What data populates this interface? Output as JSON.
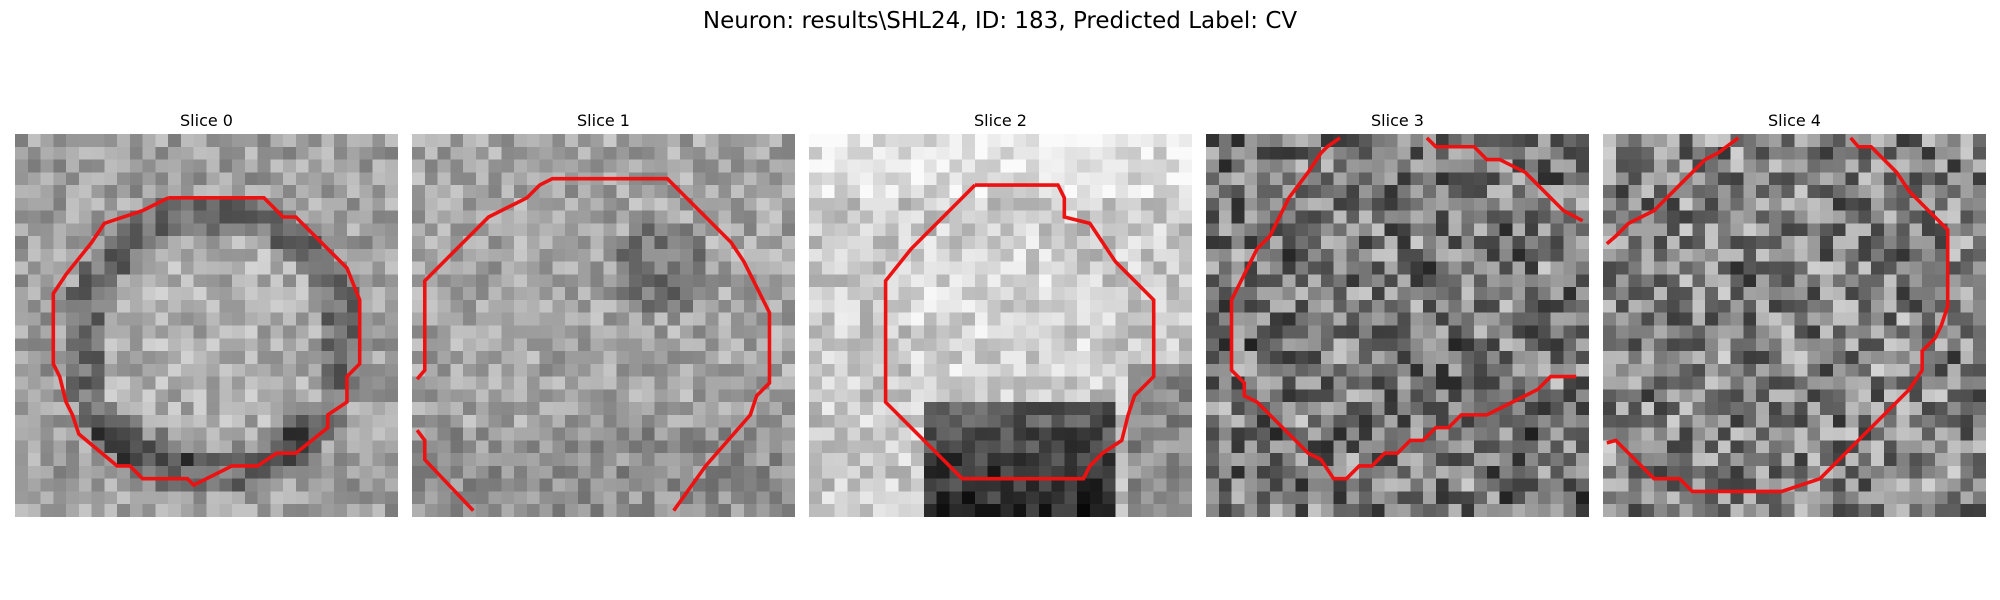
{
  "figure": {
    "suptitle": "Neuron: results\\SHL24, ID: 183, Predicted Label: CV",
    "contour_color": "#ee1111"
  },
  "panels": [
    {
      "title": "Slice 0"
    },
    {
      "title": "Slice 1"
    },
    {
      "title": "Slice 2"
    },
    {
      "title": "Slice 3"
    },
    {
      "title": "Slice 4"
    }
  ]
}
